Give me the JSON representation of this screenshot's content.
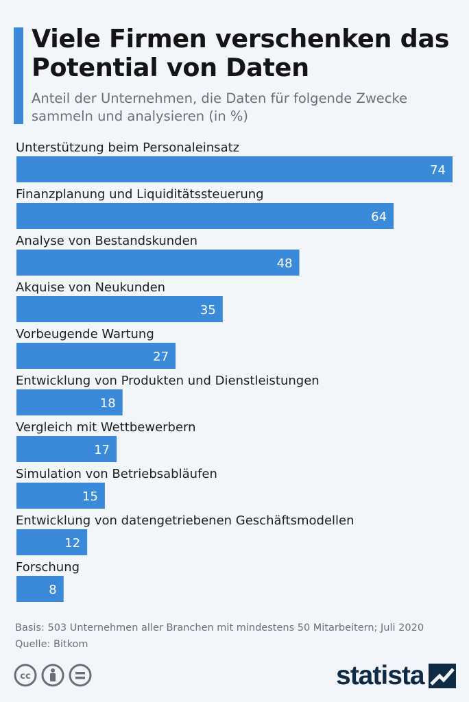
{
  "header": {
    "title": "Viele Firmen verschenken das Potential von Daten",
    "subtitle": "Anteil der Unternehmen, die Daten für folgende Zwecke sammeln und analysieren (in %)"
  },
  "chart_data": {
    "type": "bar",
    "orientation": "horizontal",
    "categories": [
      "Unterstützung beim Personaleinsatz",
      "Finanzplanung und Liquiditätssteuerung",
      "Analyse von Bestandskunden",
      "Akquise von Neukunden",
      "Vorbeugende Wartung",
      "Entwicklung von Produkten und Dienstleistungen",
      "Vergleich mit Wettbewerbern",
      "Simulation von Betriebsabläufen",
      "Entwicklung von datengetriebenen Geschäftsmodellen",
      "Forschung"
    ],
    "values": [
      74,
      64,
      48,
      35,
      27,
      18,
      17,
      15,
      12,
      8
    ],
    "title": "Viele Firmen verschenken das Potential von Daten",
    "subtitle": "Anteil der Unternehmen, die Daten für folgende Zwecke sammeln und analysieren (in %)",
    "xlim": [
      0,
      74
    ],
    "grid": false,
    "bar_color": "#3b8ad9",
    "label_color": "#ffffff"
  },
  "footer": {
    "basis": "Basis: 503 Unternehmen aller Branchen mit mindestens 50 Mitarbeitern; Juli 2020",
    "source": "Quelle: Bitkom",
    "brand": "statista",
    "license_icons": [
      "cc-icon",
      "attribution-icon",
      "no-derivatives-icon"
    ]
  }
}
